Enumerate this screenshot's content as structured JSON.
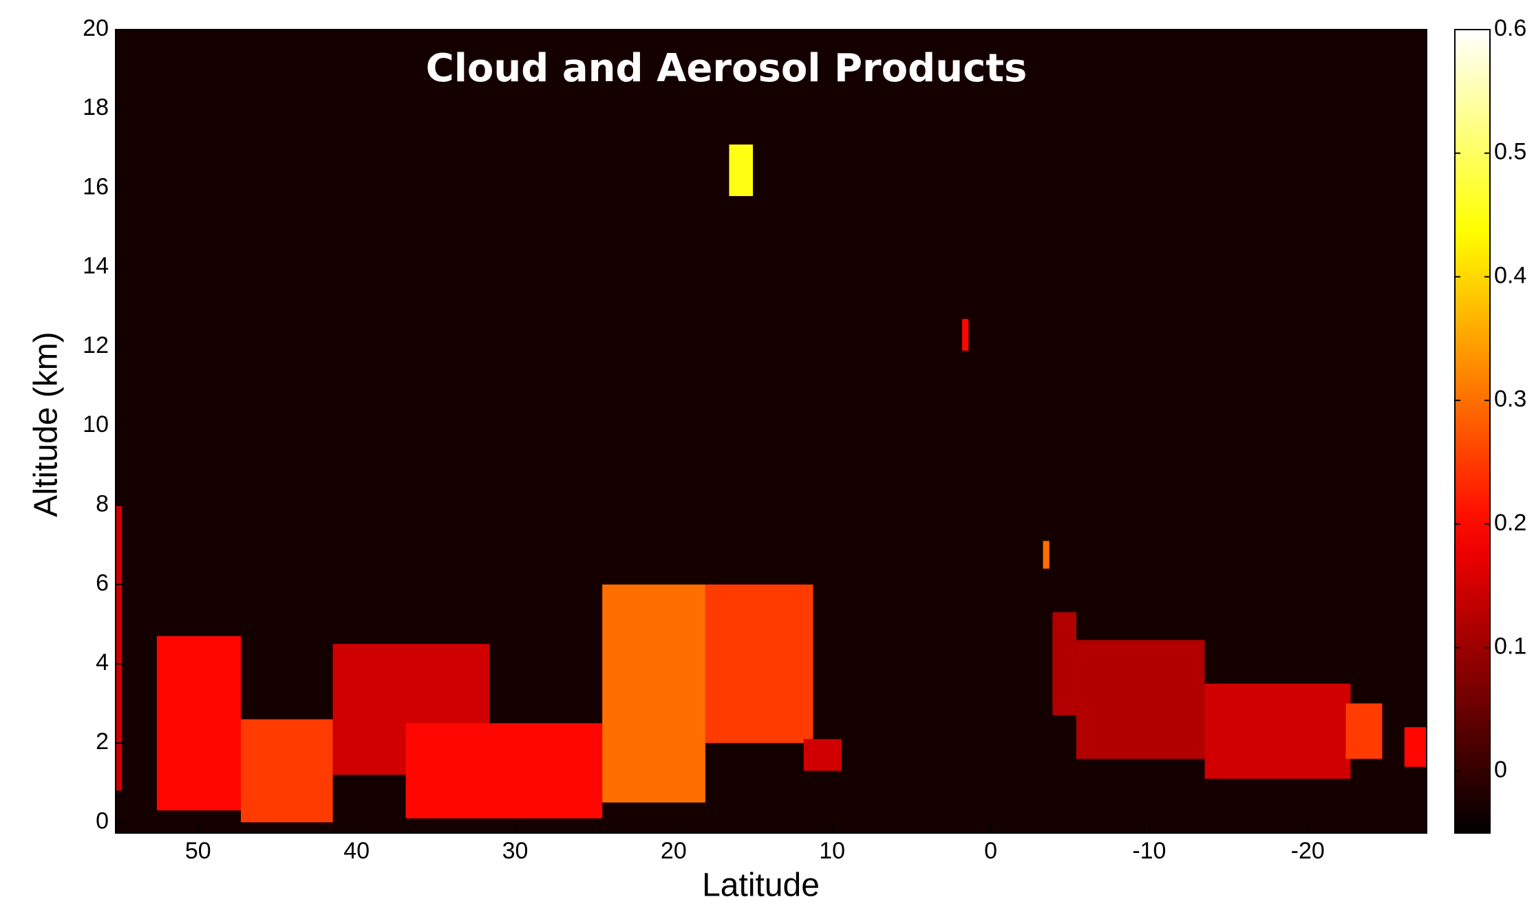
{
  "chart_data": {
    "type": "curtain",
    "annotation": "Cloud and Aerosol Products",
    "x_label": "Latitude",
    "y_label": "Altitude (km)",
    "xlim": [
      55.2,
      -27.5
    ],
    "xticks": [
      50,
      40,
      30,
      20,
      10,
      0,
      -10,
      -20
    ],
    "ylim": [
      -0.27,
      20
    ],
    "yticks": [
      0,
      2,
      4,
      6,
      8,
      10,
      12,
      14,
      16,
      18,
      20
    ],
    "clim": [
      -0.05,
      0.6
    ],
    "cticks": [
      0,
      0.1,
      0.2,
      0.3,
      0.4,
      0.5,
      0.6
    ],
    "colormap": "hot",
    "background": "#150000",
    "layers": [
      {
        "lat": [
          55.2,
          54.8
        ],
        "alt": [
          0.8,
          8.0
        ],
        "value": 0.15
      },
      {
        "lat": [
          52.6,
          47.3
        ],
        "alt": [
          0.3,
          4.7
        ],
        "value": 0.2
      },
      {
        "lat": [
          47.3,
          41.5
        ],
        "alt": [
          0.0,
          2.6
        ],
        "value": 0.25
      },
      {
        "lat": [
          41.5,
          31.6
        ],
        "alt": [
          1.2,
          4.5
        ],
        "value": 0.15
      },
      {
        "lat": [
          36.9,
          24.5
        ],
        "alt": [
          0.1,
          2.5
        ],
        "value": 0.2
      },
      {
        "lat": [
          24.5,
          18.0
        ],
        "alt": [
          0.5,
          6.0
        ],
        "value": 0.3
      },
      {
        "lat": [
          18.0,
          11.2
        ],
        "alt": [
          2.0,
          6.0
        ],
        "value": 0.25
      },
      {
        "lat": [
          16.5,
          15.0
        ],
        "alt": [
          15.8,
          17.1
        ],
        "value": 0.45
      },
      {
        "lat": [
          11.8,
          9.4
        ],
        "alt": [
          1.3,
          2.1
        ],
        "value": 0.15
      },
      {
        "lat": [
          1.8,
          1.4
        ],
        "alt": [
          11.9,
          12.7
        ],
        "value": 0.2
      },
      {
        "lat": [
          -3.3,
          -3.7
        ],
        "alt": [
          6.4,
          7.1
        ],
        "value": 0.3
      },
      {
        "lat": [
          -3.9,
          -5.4
        ],
        "alt": [
          2.7,
          5.3
        ],
        "value": 0.12
      },
      {
        "lat": [
          -5.4,
          -13.5
        ],
        "alt": [
          1.6,
          4.6
        ],
        "value": 0.12
      },
      {
        "lat": [
          -13.5,
          -22.7
        ],
        "alt": [
          1.1,
          3.5
        ],
        "value": 0.15
      },
      {
        "lat": [
          -22.4,
          -24.7
        ],
        "alt": [
          1.6,
          3.0
        ],
        "value": 0.25
      },
      {
        "lat": [
          -26.1,
          -27.5
        ],
        "alt": [
          1.4,
          2.4
        ],
        "value": 0.2
      }
    ]
  }
}
